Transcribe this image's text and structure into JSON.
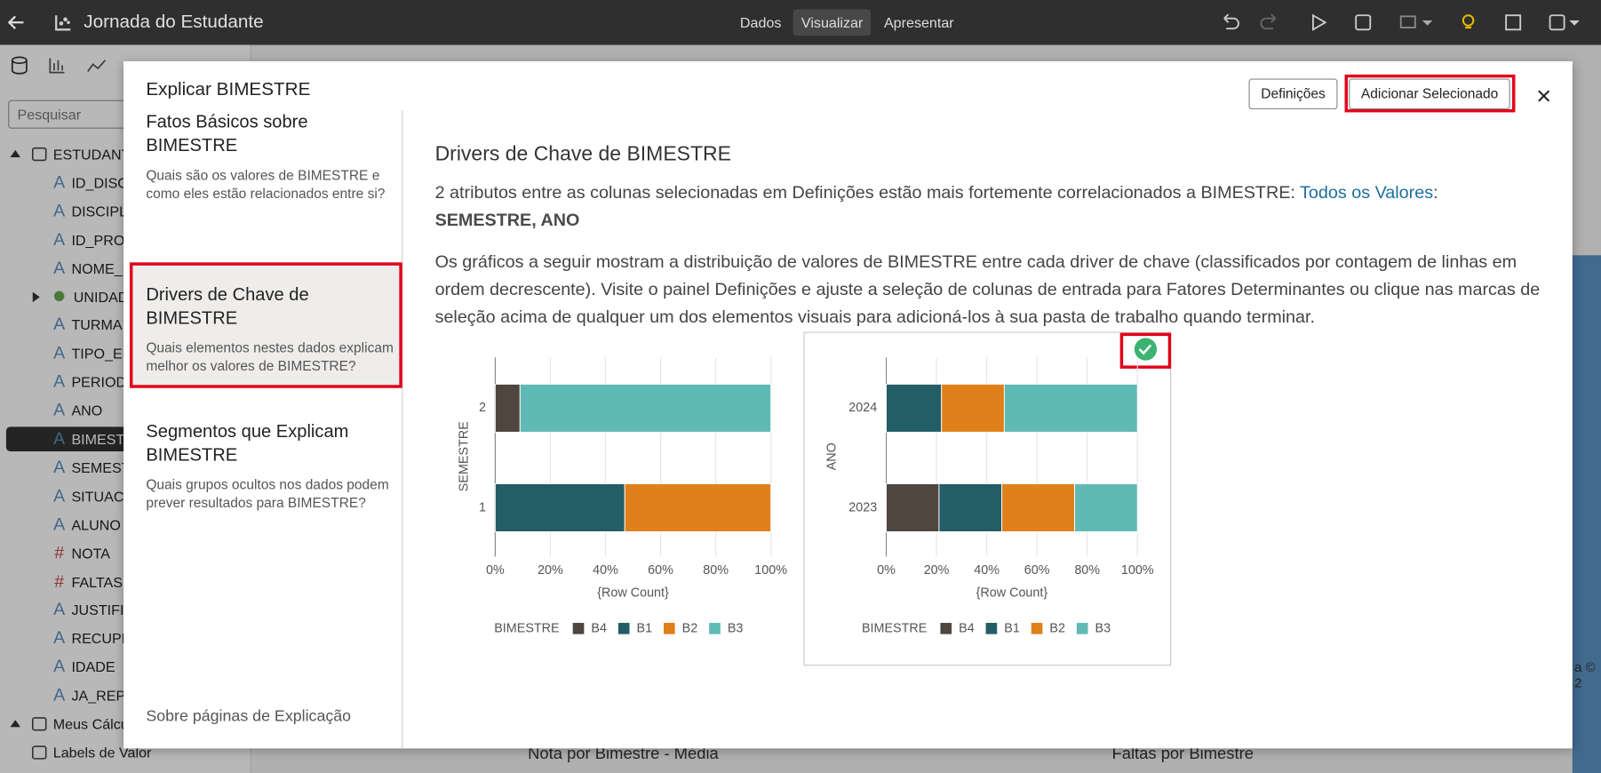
{
  "top_bar": {
    "title": "Jornada do Estudante",
    "tabs": [
      "Dados",
      "Visualizar",
      "Apresentar"
    ],
    "active_tab": 1
  },
  "data_panel": {
    "search_placeholder": "Pesquisar",
    "items": [
      {
        "label": "ESTUDANT",
        "level": 0,
        "kind": "dataset"
      },
      {
        "label": "ID_DISC",
        "level": 1,
        "icon": "A"
      },
      {
        "label": "DISCIPL",
        "level": 1,
        "icon": "A"
      },
      {
        "label": "ID_PRO",
        "level": 1,
        "icon": "A"
      },
      {
        "label": "NOME_L",
        "level": 1,
        "icon": "A"
      },
      {
        "label": "UNIDAD",
        "level": 1,
        "kind": "geo"
      },
      {
        "label": "TURMA",
        "level": 1,
        "icon": "A"
      },
      {
        "label": "TIPO_EN",
        "level": 1,
        "icon": "A"
      },
      {
        "label": "PERIODO",
        "level": 1,
        "icon": "A"
      },
      {
        "label": "ANO",
        "level": 1,
        "icon": "A"
      },
      {
        "label": "BIMEST",
        "level": 1,
        "icon": "A",
        "selected": true
      },
      {
        "label": "SEMEST",
        "level": 1,
        "icon": "A"
      },
      {
        "label": "SITUACA",
        "level": 1,
        "icon": "A"
      },
      {
        "label": "ALUNO",
        "level": 1,
        "icon": "A"
      },
      {
        "label": "NOTA",
        "level": 1,
        "icon": "#"
      },
      {
        "label": "FALTAS",
        "level": 1,
        "icon": "#"
      },
      {
        "label": "JUSTIFI",
        "level": 1,
        "icon": "A"
      },
      {
        "label": "RECUPE",
        "level": 1,
        "icon": "A"
      },
      {
        "label": "IDADE",
        "level": 1,
        "icon": "A"
      },
      {
        "label": "JA_REP",
        "level": 1,
        "icon": "A"
      },
      {
        "label": "Meus Cálcu",
        "level": 0,
        "kind": "folder"
      },
      {
        "label": "Labels de Valor",
        "level": 0,
        "kind": "tag"
      }
    ]
  },
  "background": {
    "visual_titles": [
      "Nota por Bimestre - Média",
      "Faltas por Bimestre"
    ],
    "footer_fragment": "a © 2"
  },
  "dialog": {
    "title": "Explicar BIMESTRE",
    "buttons": [
      "Definições",
      "Adicionar Selecionado"
    ],
    "nav": [
      {
        "title": "Fatos Básicos sobre BIMESTRE",
        "description": "Quais são os valores de BIMESTRE e como eles estão relacionados entre si?"
      },
      {
        "title": "Drivers de Chave de BIMESTRE",
        "description": "Quais elementos nestes dados explicam melhor os valores de BIMESTRE?"
      },
      {
        "title": "Segmentos que Explicam BIMESTRE",
        "description": "Quais grupos ocultos nos dados podem prever resultados para BIMESTRE?"
      }
    ],
    "selected_nav": 1,
    "nav_footer": "Sobre páginas de Explicação",
    "content": {
      "heading": "Drivers de Chave de BIMESTRE",
      "summary": {
        "text": "2 atributos entre as colunas selecionadas em Definições estão mais fortemente correlacionados a BIMESTRE: ",
        "link": "Todos os Valores",
        "after_link": ":",
        "attributes": "SEMESTRE, ANO"
      },
      "description": "Os gráficos a seguir mostram a distribuição de valores de BIMESTRE entre cada driver de chave (classificados por contagem de linhas em ordem decrescente). Visite o painel Definições e ajuste a seleção de colunas de entrada para Fatores Determinantes ou clique nas marcas de seleção acima de qualquer um dos elementos visuais para adicioná-los à sua pasta de trabalho quando terminar."
    }
  },
  "chart_data": [
    {
      "type": "bar",
      "orientation": "horizontal",
      "stacked": true,
      "selected": false,
      "y_label": "SEMESTRE",
      "x_label": "{Row Count}",
      "legend_title": "BIMESTRE",
      "categories": [
        "2",
        "1"
      ],
      "series": [
        {
          "name": "B4",
          "color": "#4f4640",
          "values": [
            9,
            null
          ]
        },
        {
          "name": "B1",
          "color": "#235e66",
          "values": [
            null,
            47
          ]
        },
        {
          "name": "B2",
          "color": "#e0801a",
          "values": [
            null,
            53
          ]
        },
        {
          "name": "B3",
          "color": "#5fbab5",
          "values": [
            91,
            null
          ]
        }
      ],
      "xlim": [
        0,
        100
      ],
      "xticks": [
        {
          "value": 0,
          "label": "0%"
        },
        {
          "value": 20,
          "label": "20%"
        },
        {
          "value": 40,
          "label": "40%"
        },
        {
          "value": 60,
          "label": "60%"
        },
        {
          "value": 80,
          "label": "80%"
        },
        {
          "value": 100,
          "label": "100%"
        }
      ],
      "grid": true
    },
    {
      "type": "bar",
      "orientation": "horizontal",
      "stacked": true,
      "selected": true,
      "y_label": "ANO",
      "x_label": "{Row Count}",
      "legend_title": "BIMESTRE",
      "categories": [
        "2024",
        "2023"
      ],
      "series": [
        {
          "name": "B4",
          "color": "#4f4640",
          "values": [
            null,
            21
          ]
        },
        {
          "name": "B1",
          "color": "#235e66",
          "values": [
            22,
            25
          ]
        },
        {
          "name": "B2",
          "color": "#e0801a",
          "values": [
            25,
            29
          ]
        },
        {
          "name": "B3",
          "color": "#5fbab5",
          "values": [
            53,
            25
          ]
        }
      ],
      "xlim": [
        0,
        100
      ],
      "xticks": [
        {
          "value": 0,
          "label": "0%"
        },
        {
          "value": 20,
          "label": "20%"
        },
        {
          "value": 40,
          "label": "40%"
        },
        {
          "value": 60,
          "label": "60%"
        },
        {
          "value": 80,
          "label": "80%"
        },
        {
          "value": 100,
          "label": "100%"
        }
      ],
      "grid": true
    }
  ]
}
